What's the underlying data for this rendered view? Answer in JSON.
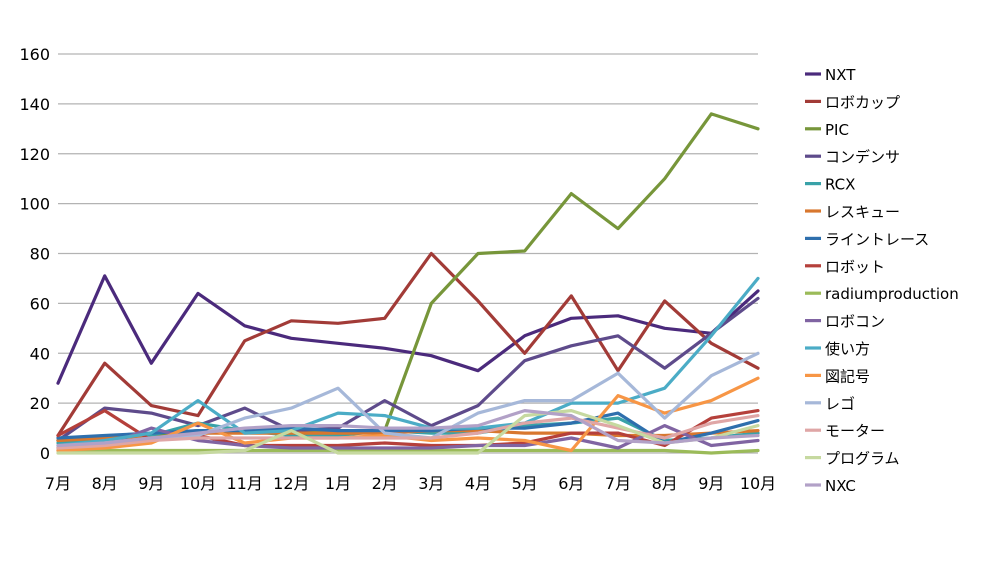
{
  "chart_data": {
    "type": "line",
    "title": "",
    "xlabel": "",
    "ylabel": "",
    "ylim": [
      0,
      160
    ],
    "yticks": [
      0,
      20,
      40,
      60,
      80,
      100,
      120,
      140,
      160
    ],
    "grid": "horizontal",
    "legend_position": "right",
    "categories": [
      "7月",
      "8月",
      "9月",
      "10月",
      "11月",
      "12月",
      "1月",
      "2月",
      "3月",
      "4月",
      "5月",
      "6月",
      "7月",
      "8月",
      "9月",
      "10月"
    ],
    "series": [
      {
        "name": "NXT",
        "color": "#4b2a7c",
        "values": [
          28,
          71,
          36,
          64,
          51,
          46,
          44,
          42,
          39,
          33,
          47,
          54,
          55,
          50,
          48,
          65
        ]
      },
      {
        "name": "ロボカップ",
        "color": "#a23b37",
        "values": [
          7,
          36,
          19,
          15,
          45,
          53,
          52,
          54,
          80,
          61,
          40,
          63,
          33,
          61,
          44,
          34
        ]
      },
      {
        "name": "PIC",
        "color": "#77963a",
        "values": [
          5,
          5,
          7,
          9,
          9,
          9,
          9,
          9,
          60,
          80,
          81,
          104,
          90,
          110,
          136,
          130
        ]
      },
      {
        "name": "コンデンサ",
        "color": "#5e4b8b",
        "values": [
          5,
          18,
          16,
          11,
          18,
          9,
          10,
          21,
          11,
          19,
          37,
          43,
          47,
          34,
          48,
          62
        ]
      },
      {
        "name": "RCX",
        "color": "#39a2a8",
        "values": [
          4,
          6,
          7,
          12,
          9,
          7,
          7,
          9,
          8,
          8,
          11,
          12,
          14,
          5,
          6,
          8
        ]
      },
      {
        "name": "レスキュー",
        "color": "#d8772e",
        "values": [
          5,
          6,
          6,
          8,
          8,
          8,
          8,
          8,
          9,
          9,
          8,
          8,
          7,
          7,
          8,
          9
        ]
      },
      {
        "name": "ライントレース",
        "color": "#2e6fad",
        "values": [
          6,
          7,
          8,
          9,
          9,
          10,
          9,
          9,
          9,
          10,
          10,
          12,
          16,
          4,
          8,
          13
        ]
      },
      {
        "name": "ロボット",
        "color": "#b5403b",
        "values": [
          7,
          17,
          5,
          7,
          3,
          3,
          3,
          4,
          3,
          3,
          4,
          8,
          8,
          3,
          14,
          17
        ]
      },
      {
        "name": "radiumproduction",
        "color": "#9bbb59",
        "values": [
          1,
          1,
          1,
          1,
          1,
          1,
          1,
          1,
          1,
          1,
          1,
          1,
          1,
          1,
          0,
          1
        ]
      },
      {
        "name": "ロボコン",
        "color": "#8064a2",
        "values": [
          2,
          3,
          10,
          5,
          3,
          2,
          2,
          2,
          2,
          3,
          3,
          6,
          2,
          11,
          3,
          5
        ]
      },
      {
        "name": "使い方",
        "color": "#4bacc6",
        "values": [
          3,
          5,
          8,
          21,
          8,
          9,
          16,
          15,
          10,
          10,
          12,
          20,
          20,
          26,
          47,
          70
        ]
      },
      {
        "name": "図記号",
        "color": "#f79646",
        "values": [
          1,
          2,
          4,
          12,
          4,
          6,
          6,
          7,
          5,
          6,
          5,
          1,
          23,
          16,
          21,
          30
        ]
      },
      {
        "name": "レゴ",
        "color": "#a6b8d9",
        "values": [
          2,
          4,
          6,
          7,
          14,
          18,
          26,
          8,
          6,
          16,
          21,
          21,
          32,
          14,
          31,
          40
        ]
      },
      {
        "name": "モーター",
        "color": "#dfa6a6",
        "values": [
          2,
          3,
          5,
          6,
          6,
          6,
          6,
          6,
          6,
          8,
          12,
          14,
          10,
          6,
          12,
          15
        ]
      },
      {
        "name": "プログラム",
        "color": "#c6d9a0",
        "values": [
          0,
          0,
          0,
          0,
          1,
          9,
          0,
          0,
          0,
          0,
          15,
          17,
          11,
          4,
          6,
          11
        ]
      },
      {
        "name": "NXC",
        "color": "#b2a1c7",
        "values": [
          3,
          4,
          6,
          8,
          10,
          11,
          11,
          10,
          10,
          11,
          17,
          15,
          5,
          4,
          6,
          7
        ]
      }
    ]
  }
}
